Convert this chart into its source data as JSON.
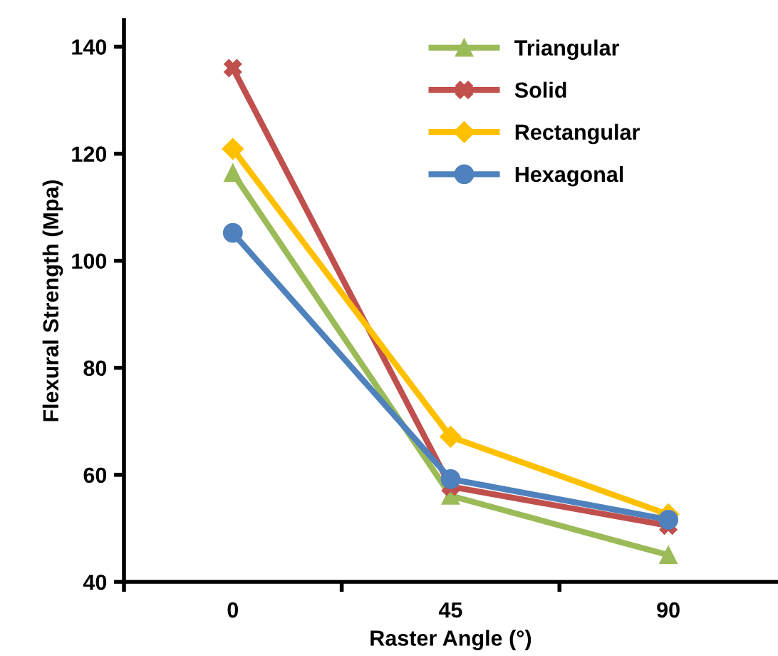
{
  "chart_data": {
    "type": "line",
    "xlabel": "Raster Angle (°)",
    "ylabel": "Flexural Strength (Mpa)",
    "categories": [
      "0",
      "45",
      "90"
    ],
    "series": [
      {
        "name": "Triangular",
        "color": "#9bbb59",
        "marker": "triangle",
        "values": [
          116.4,
          56.1,
          45.0
        ]
      },
      {
        "name": "Solid",
        "color": "#c0504d",
        "marker": "cross",
        "values": [
          136.0,
          57.8,
          50.5
        ]
      },
      {
        "name": "Rectangular",
        "color": "#ffc000",
        "marker": "diamond",
        "values": [
          120.9,
          67.1,
          52.6
        ]
      },
      {
        "name": "Hexagonal",
        "color": "#4f81bd",
        "marker": "circle",
        "values": [
          105.2,
          59.2,
          51.6
        ]
      }
    ],
    "ylim": [
      40,
      145
    ],
    "yticks": [
      40,
      60,
      80,
      100,
      120,
      140
    ],
    "grid": false,
    "legend": "top right"
  }
}
